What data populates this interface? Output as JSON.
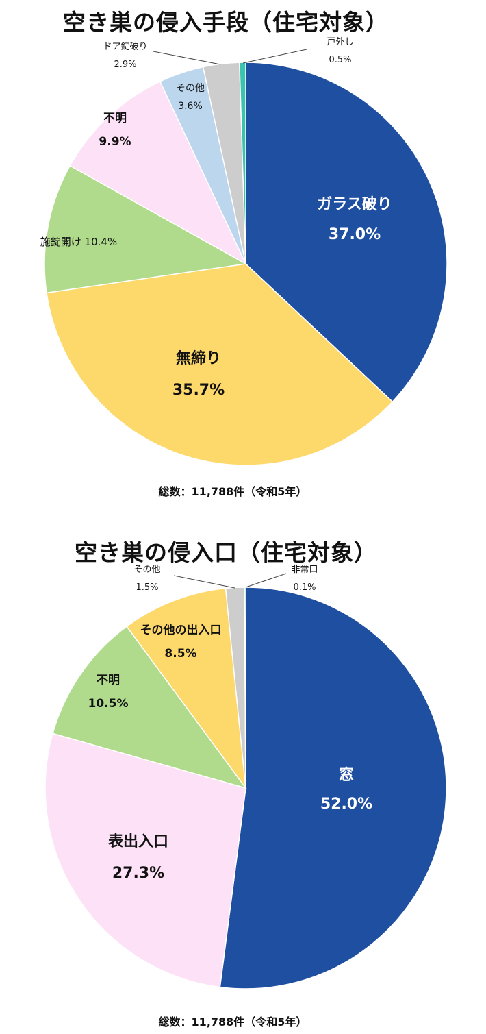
{
  "chart_data": [
    {
      "type": "pie",
      "title": "空き巣の侵入手段（住宅対象）",
      "note": "総数：11,788件（令和5年）",
      "categories": [
        "ガラス破り",
        "無締り",
        "施錠開け",
        "不明",
        "その他",
        "ドア錠破り",
        "戸外し"
      ],
      "values": [
        37.0,
        35.7,
        10.4,
        9.9,
        3.6,
        2.9,
        0.5
      ],
      "value_labels": [
        "37.0%",
        "35.7%",
        "10.4%",
        "9.9%",
        "3.6%",
        "2.9%",
        "0.5%"
      ],
      "colors": [
        "#1f4fa0",
        "#fdd86a",
        "#b0db8c",
        "#fde1f6",
        "#bcd6ee",
        "#cdcdcd",
        "#3cc3b0"
      ],
      "start_angle_deg": 0,
      "direction": "clockwise",
      "legend": "none"
    },
    {
      "type": "pie",
      "title": "空き巣の侵入口（住宅対象）",
      "note": "総数：11,788件（令和5年）",
      "categories": [
        "窓",
        "表出入口",
        "不明",
        "その他の出入口",
        "その他",
        "非常口"
      ],
      "values": [
        52.0,
        27.3,
        10.5,
        8.5,
        1.5,
        0.1
      ],
      "value_labels": [
        "52.0%",
        "27.3%",
        "10.5%",
        "8.5%",
        "1.5%",
        "0.1%"
      ],
      "colors": [
        "#1f4fa0",
        "#fde1f6",
        "#b0db8c",
        "#fdd86a",
        "#cdcdcd",
        "#3cc3b0"
      ],
      "start_angle_deg": 0,
      "direction": "clockwise",
      "legend": "none"
    }
  ]
}
